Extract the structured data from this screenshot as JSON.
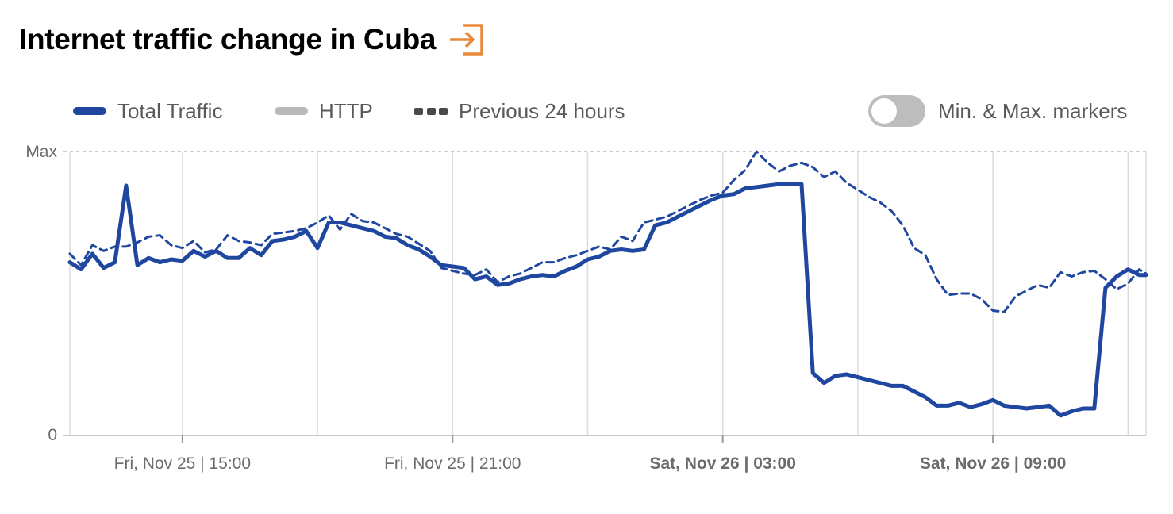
{
  "header": {
    "title": "Internet traffic change in Cuba",
    "icon": "enter-icon",
    "icon_color": "#e8893a"
  },
  "legend": [
    {
      "label": "Total Traffic",
      "style": "solid",
      "color": "#1f47a0"
    },
    {
      "label": "HTTP",
      "style": "solid",
      "color": "#b9b9b9"
    },
    {
      "label": "Previous 24 hours",
      "style": "dashed",
      "color": "#4a4a4a"
    }
  ],
  "toggle": {
    "label": "Min. & Max. markers",
    "on": false
  },
  "chart_data": {
    "type": "line",
    "y_tick_labels": [
      "Max",
      "0"
    ],
    "ylim": [
      0,
      100
    ],
    "xlim": [
      12.5,
      36.4
    ],
    "x_unit": "hours since Fri, Nov 25 00:00",
    "grid": {
      "vertical": true,
      "top_dashed": true
    },
    "x_ticks": [
      {
        "x": 15,
        "label": "Fri, Nov 25 | 15:00",
        "bold": false
      },
      {
        "x": 21,
        "label": "Fri, Nov 25 | 21:00",
        "bold": false
      },
      {
        "x": 27,
        "label": "Sat, Nov 26 | 03:00",
        "bold": true
      },
      {
        "x": 33,
        "label": "Sat, Nov 26 | 09:00",
        "bold": true
      }
    ],
    "x_gridlines": [
      15,
      18,
      21,
      24,
      27,
      30,
      33,
      36
    ],
    "series": [
      {
        "name": "Total Traffic",
        "color": "#1f47a0",
        "dashed": false,
        "points": [
          [
            12.5,
            61
          ],
          [
            12.75,
            58.5
          ],
          [
            13.0,
            64
          ],
          [
            13.25,
            59
          ],
          [
            13.5,
            61
          ],
          [
            13.75,
            88
          ],
          [
            14.0,
            60
          ],
          [
            14.25,
            62.5
          ],
          [
            14.5,
            61
          ],
          [
            14.75,
            62
          ],
          [
            15.0,
            61.5
          ],
          [
            15.25,
            65
          ],
          [
            15.5,
            63
          ],
          [
            15.75,
            65
          ],
          [
            16.0,
            62.5
          ],
          [
            16.25,
            62.5
          ],
          [
            16.5,
            66
          ],
          [
            16.75,
            63.5
          ],
          [
            17.0,
            68.5
          ],
          [
            17.25,
            69
          ],
          [
            17.5,
            70
          ],
          [
            17.75,
            72
          ],
          [
            18.0,
            66
          ],
          [
            18.25,
            75
          ],
          [
            18.5,
            75
          ],
          [
            18.75,
            74
          ],
          [
            19.0,
            73
          ],
          [
            19.25,
            72
          ],
          [
            19.5,
            70
          ],
          [
            19.75,
            69.5
          ],
          [
            20.0,
            67
          ],
          [
            20.25,
            65.5
          ],
          [
            20.5,
            63
          ],
          [
            20.75,
            60
          ],
          [
            21.0,
            59.5
          ],
          [
            21.25,
            59
          ],
          [
            21.5,
            55
          ],
          [
            21.75,
            56
          ],
          [
            22.0,
            53
          ],
          [
            22.25,
            53.5
          ],
          [
            22.5,
            55
          ],
          [
            22.75,
            56
          ],
          [
            23.0,
            56.5
          ],
          [
            23.25,
            56
          ],
          [
            23.5,
            58
          ],
          [
            23.75,
            59.5
          ],
          [
            24.0,
            62
          ],
          [
            24.25,
            63
          ],
          [
            24.5,
            65
          ],
          [
            24.75,
            65.5
          ],
          [
            25.0,
            65
          ],
          [
            25.25,
            65.5
          ],
          [
            25.5,
            74
          ],
          [
            25.75,
            75
          ],
          [
            26.0,
            77
          ],
          [
            26.25,
            79
          ],
          [
            26.5,
            81
          ],
          [
            26.75,
            83
          ],
          [
            27.0,
            84.5
          ],
          [
            27.25,
            85
          ],
          [
            27.5,
            87
          ],
          [
            27.75,
            87.5
          ],
          [
            28.0,
            88
          ],
          [
            28.25,
            88.5
          ],
          [
            28.5,
            88.5
          ],
          [
            28.75,
            88.5
          ],
          [
            29.0,
            22
          ],
          [
            29.25,
            18.5
          ],
          [
            29.5,
            21
          ],
          [
            29.75,
            21.5
          ],
          [
            30.0,
            20.5
          ],
          [
            30.25,
            19.5
          ],
          [
            30.5,
            18.5
          ],
          [
            30.75,
            17.5
          ],
          [
            31.0,
            17.5
          ],
          [
            31.25,
            15.5
          ],
          [
            31.5,
            13.5
          ],
          [
            31.75,
            10.5
          ],
          [
            32.0,
            10.5
          ],
          [
            32.25,
            11.5
          ],
          [
            32.5,
            10
          ],
          [
            32.75,
            11
          ],
          [
            33.0,
            12.5
          ],
          [
            33.25,
            10.5
          ],
          [
            33.5,
            10
          ],
          [
            33.75,
            9.5
          ],
          [
            34.0,
            10
          ],
          [
            34.25,
            10.5
          ],
          [
            34.5,
            7
          ],
          [
            34.75,
            8.5
          ],
          [
            35.0,
            9.5
          ],
          [
            35.25,
            9.5
          ],
          [
            35.5,
            52
          ],
          [
            35.75,
            56
          ],
          [
            36.0,
            58.5
          ],
          [
            36.25,
            56.5
          ],
          [
            36.4,
            56.5
          ]
        ]
      },
      {
        "name": "Previous 24 hours",
        "color": "#1f47a0",
        "dashed": true,
        "points": [
          [
            12.5,
            64
          ],
          [
            12.75,
            60
          ],
          [
            13.0,
            67
          ],
          [
            13.25,
            65
          ],
          [
            13.5,
            66.5
          ],
          [
            13.75,
            66.5
          ],
          [
            14.0,
            68
          ],
          [
            14.25,
            70
          ],
          [
            14.5,
            70.5
          ],
          [
            14.75,
            67
          ],
          [
            15.0,
            66
          ],
          [
            15.25,
            68.5
          ],
          [
            15.5,
            64.5
          ],
          [
            15.75,
            65.5
          ],
          [
            16.0,
            70.5
          ],
          [
            16.25,
            68.5
          ],
          [
            16.5,
            68
          ],
          [
            16.75,
            67
          ],
          [
            17.0,
            71
          ],
          [
            17.25,
            71.5
          ],
          [
            17.5,
            72
          ],
          [
            17.75,
            73
          ],
          [
            18.0,
            75
          ],
          [
            18.25,
            77.5
          ],
          [
            18.5,
            72.5
          ],
          [
            18.75,
            78
          ],
          [
            19.0,
            75.5
          ],
          [
            19.25,
            75
          ],
          [
            19.5,
            73
          ],
          [
            19.75,
            71
          ],
          [
            20.0,
            70
          ],
          [
            20.25,
            67.5
          ],
          [
            20.5,
            65
          ],
          [
            20.75,
            59
          ],
          [
            21.0,
            58
          ],
          [
            21.25,
            57
          ],
          [
            21.5,
            56.5
          ],
          [
            21.75,
            58.5
          ],
          [
            22.0,
            54
          ],
          [
            22.25,
            56
          ],
          [
            22.5,
            57
          ],
          [
            22.75,
            59
          ],
          [
            23.0,
            61
          ],
          [
            23.25,
            61
          ],
          [
            23.5,
            62.5
          ],
          [
            23.75,
            63.5
          ],
          [
            24.0,
            65
          ],
          [
            24.25,
            66.5
          ],
          [
            24.5,
            65.5
          ],
          [
            24.75,
            70
          ],
          [
            25.0,
            68.5
          ],
          [
            25.25,
            75
          ],
          [
            25.5,
            76
          ],
          [
            25.75,
            77
          ],
          [
            26.0,
            79
          ],
          [
            26.25,
            81
          ],
          [
            26.5,
            83
          ],
          [
            26.75,
            84.5
          ],
          [
            27.0,
            85.5
          ],
          [
            27.25,
            90
          ],
          [
            27.5,
            93.5
          ],
          [
            27.75,
            100
          ],
          [
            28.0,
            96
          ],
          [
            28.25,
            93
          ],
          [
            28.5,
            95
          ],
          [
            28.75,
            96
          ],
          [
            29.0,
            94.5
          ],
          [
            29.25,
            91
          ],
          [
            29.5,
            93
          ],
          [
            29.75,
            89
          ],
          [
            30.0,
            86.5
          ],
          [
            30.25,
            84
          ],
          [
            30.5,
            82
          ],
          [
            30.75,
            79
          ],
          [
            31.0,
            74
          ],
          [
            31.25,
            66
          ],
          [
            31.5,
            63.5
          ],
          [
            31.75,
            55
          ],
          [
            32.0,
            49.5
          ],
          [
            32.25,
            50
          ],
          [
            32.5,
            50
          ],
          [
            32.75,
            48
          ],
          [
            33.0,
            44
          ],
          [
            33.25,
            43.5
          ],
          [
            33.5,
            49
          ],
          [
            33.75,
            51
          ],
          [
            34.0,
            53
          ],
          [
            34.25,
            52
          ],
          [
            34.5,
            57.5
          ],
          [
            34.75,
            56
          ],
          [
            35.0,
            57.5
          ],
          [
            35.25,
            58
          ],
          [
            35.5,
            55
          ],
          [
            35.75,
            51.5
          ],
          [
            36.0,
            53.5
          ],
          [
            36.25,
            58.5
          ],
          [
            36.4,
            57
          ]
        ]
      }
    ]
  }
}
